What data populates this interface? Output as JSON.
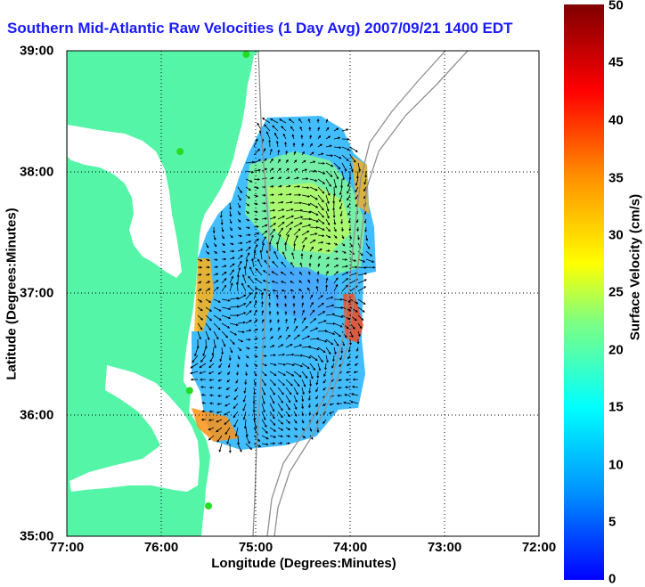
{
  "title": "Southern Mid-Atlantic Raw Velocities (1 Day Avg) 2007/09/21 1400 EDT",
  "x_axis": {
    "label": "Longitude (Degrees:Minutes)",
    "ticks": [
      "77:00",
      "76:00",
      "75:00",
      "74:00",
      "73:00",
      "72:00"
    ]
  },
  "y_axis": {
    "label": "Latitude (Degrees:Minutes)",
    "ticks": [
      "39:00",
      "38:00",
      "37:00",
      "36:00",
      "35:00"
    ]
  },
  "colorbar": {
    "label": "Surface Velocity (cm/s)",
    "ticks": [
      "50",
      "45",
      "40",
      "35",
      "30",
      "25",
      "20",
      "15",
      "10",
      "5",
      "0"
    ],
    "min": 0,
    "max": 50,
    "colormap": "jet"
  },
  "colors": {
    "land": "#55f5a8",
    "water": "#ffffff",
    "title": "#1a1aff",
    "station_marker": "#22dd22",
    "bathymetry": "#909090",
    "grid": "#000000"
  },
  "map_extent": {
    "lon_range": [
      -77,
      -72
    ],
    "lat_range": [
      35,
      39
    ]
  },
  "grid": "dotted",
  "stations": [
    {
      "lon": -75.1,
      "lat": 38.97
    },
    {
      "lon": -75.8,
      "lat": 38.17
    },
    {
      "lon": -75.7,
      "lat": 36.2
    },
    {
      "lon": -75.5,
      "lat": 35.25
    }
  ]
}
